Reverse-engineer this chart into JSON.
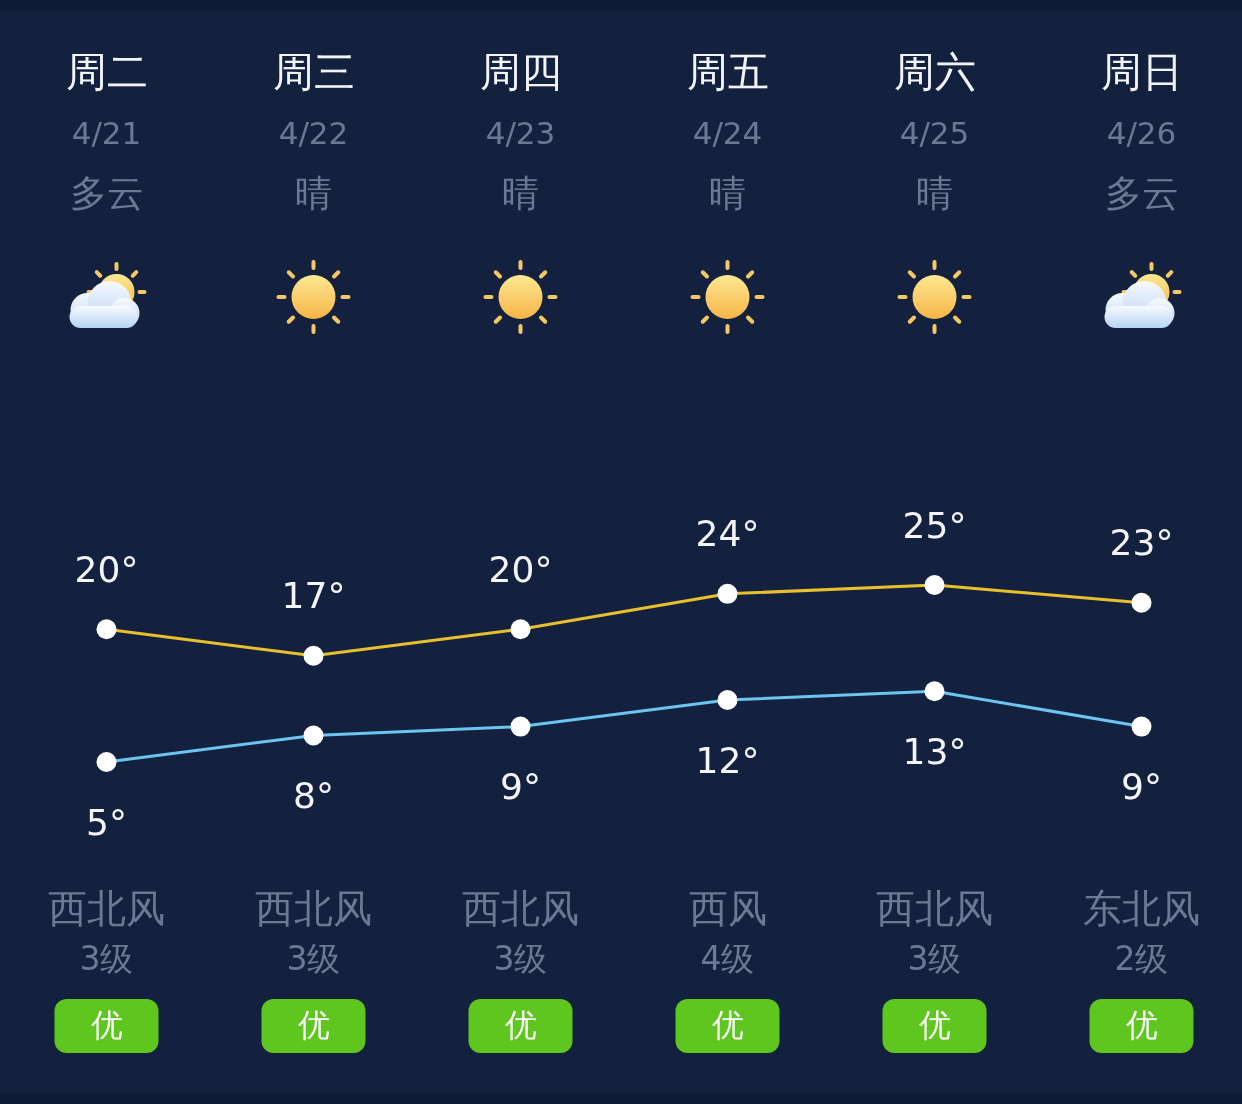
{
  "chart_data": {
    "type": "line",
    "categories": [
      "周二",
      "周三",
      "周四",
      "周五",
      "周六",
      "周日"
    ],
    "series": [
      {
        "color": "#e8bf2c",
        "values": [
          20,
          17,
          20,
          24,
          25,
          23
        ],
        "value_labels": [
          "20°",
          "17°",
          "20°",
          "24°",
          "25°",
          "23°"
        ]
      },
      {
        "color": "#6cc5f0",
        "values": [
          5,
          8,
          9,
          12,
          13,
          9
        ],
        "value_labels": [
          "5°",
          "8°",
          "9°",
          "12°",
          "13°",
          "9°"
        ]
      }
    ],
    "marker": "circle",
    "line_style": "solid",
    "tick_labels": "x",
    "annotations": [
      "4/21",
      "多云",
      "西北风",
      "3级",
      "优",
      "4/22",
      "晴",
      "西北风",
      "3级",
      "优",
      "4/23",
      "晴",
      "西北风",
      "3级",
      "优",
      "4/24",
      "晴",
      "西风",
      "4级",
      "优",
      "4/25",
      "晴",
      "西北风",
      "3级",
      "优",
      "4/26",
      "多云",
      "东北风",
      "2级",
      "优"
    ]
  }
}
